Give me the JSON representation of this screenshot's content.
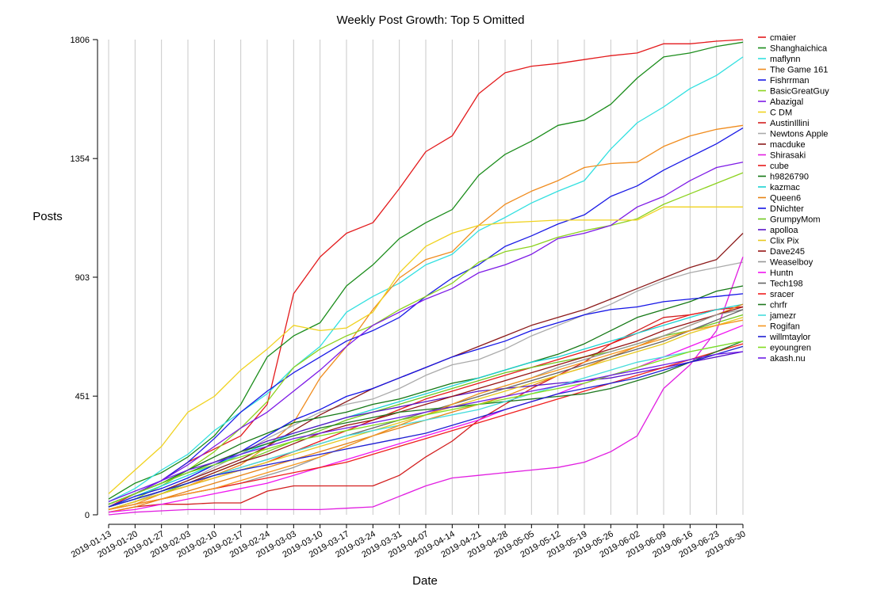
{
  "chart_data": {
    "type": "line",
    "title": "Weekly Post Growth: Top 5 Omitted",
    "xlabel": "Date",
    "ylabel": "Posts",
    "x": [
      "2019-01-13",
      "2019-01-20",
      "2019-01-27",
      "2019-02-03",
      "2019-02-10",
      "2019-02-17",
      "2019-02-24",
      "2019-03-03",
      "2019-03-10",
      "2019-03-17",
      "2019-03-24",
      "2019-03-31",
      "2019-04-07",
      "2019-04-14",
      "2019-04-21",
      "2019-04-28",
      "2019-05-05",
      "2019-05-12",
      "2019-05-19",
      "2019-05-26",
      "2019-06-02",
      "2019-06-09",
      "2019-06-16",
      "2019-06-23",
      "2019-06-30"
    ],
    "yticks": [
      0,
      451,
      903,
      1354,
      1806
    ],
    "ylim": [
      0,
      1806
    ],
    "grid": "vertical",
    "legend_position": "right",
    "series": [
      {
        "name": "cmaier",
        "color": "#e31a1c",
        "values": [
          30,
          80,
          130,
          200,
          250,
          300,
          420,
          840,
          980,
          1070,
          1110,
          1240,
          1380,
          1440,
          1600,
          1680,
          1705,
          1715,
          1730,
          1745,
          1755,
          1790,
          1790,
          1800,
          1806
        ]
      },
      {
        "name": "Shanghaichica",
        "color": "#1a8c1a",
        "values": [
          60,
          120,
          160,
          220,
          300,
          420,
          600,
          680,
          730,
          870,
          950,
          1050,
          1110,
          1160,
          1290,
          1370,
          1420,
          1480,
          1500,
          1560,
          1660,
          1740,
          1755,
          1780,
          1796
        ]
      },
      {
        "name": "maflynn",
        "color": "#33e0e0",
        "values": [
          50,
          100,
          170,
          230,
          320,
          390,
          460,
          560,
          640,
          770,
          830,
          880,
          950,
          990,
          1080,
          1130,
          1185,
          1230,
          1270,
          1390,
          1490,
          1550,
          1620,
          1670,
          1740
        ]
      },
      {
        "name": "The Game 161",
        "color": "#f08c1e",
        "values": [
          20,
          40,
          80,
          110,
          150,
          190,
          260,
          350,
          520,
          640,
          780,
          900,
          970,
          1000,
          1100,
          1180,
          1230,
          1270,
          1320,
          1335,
          1340,
          1400,
          1440,
          1465,
          1480
        ]
      },
      {
        "name": "Fishrrman",
        "color": "#1a1ae6",
        "values": [
          40,
          80,
          130,
          200,
          290,
          390,
          470,
          540,
          600,
          660,
          700,
          750,
          830,
          900,
          950,
          1020,
          1060,
          1105,
          1140,
          1210,
          1250,
          1310,
          1360,
          1410,
          1470
        ]
      },
      {
        "name": "BasicGreatGuy",
        "color": "#8cd21e",
        "values": [
          30,
          60,
          110,
          170,
          240,
          330,
          430,
          560,
          630,
          680,
          720,
          780,
          830,
          880,
          960,
          1000,
          1020,
          1055,
          1080,
          1100,
          1125,
          1180,
          1220,
          1260,
          1300
        ]
      },
      {
        "name": "Abazigal",
        "color": "#7d1ae6",
        "values": [
          40,
          80,
          130,
          190,
          260,
          330,
          390,
          470,
          550,
          640,
          720,
          770,
          820,
          860,
          920,
          950,
          990,
          1050,
          1070,
          1100,
          1170,
          1210,
          1270,
          1320,
          1340
        ]
      },
      {
        "name": "C DM",
        "color": "#f0d21e",
        "values": [
          80,
          170,
          260,
          390,
          450,
          550,
          630,
          720,
          700,
          710,
          770,
          920,
          1020,
          1070,
          1100,
          1110,
          1115,
          1120,
          1120,
          1120,
          1120,
          1170,
          1170,
          1170,
          1170
        ]
      },
      {
        "name": "AustinIllini",
        "color": "#d21e1e",
        "values": [
          10,
          30,
          40,
          40,
          45,
          45,
          90,
          110,
          110,
          110,
          110,
          150,
          220,
          280,
          360,
          420,
          480,
          530,
          580,
          650,
          700,
          750,
          760,
          780,
          790
        ]
      },
      {
        "name": "Newtons Apple",
        "color": "#aaaaaa",
        "values": [
          20,
          50,
          90,
          130,
          180,
          230,
          290,
          340,
          390,
          420,
          440,
          480,
          530,
          570,
          590,
          630,
          680,
          720,
          760,
          800,
          850,
          890,
          920,
          940,
          960
        ]
      },
      {
        "name": "macduke",
        "color": "#8c1a1a",
        "values": [
          30,
          60,
          90,
          130,
          170,
          210,
          260,
          320,
          380,
          430,
          480,
          520,
          560,
          600,
          640,
          680,
          720,
          750,
          780,
          820,
          860,
          900,
          940,
          970,
          1070
        ]
      },
      {
        "name": "Shirasaki",
        "color": "#e11ee1",
        "values": [
          0,
          10,
          15,
          20,
          20,
          20,
          20,
          20,
          20,
          25,
          30,
          70,
          110,
          140,
          150,
          160,
          170,
          180,
          200,
          240,
          300,
          480,
          570,
          700,
          980
        ]
      },
      {
        "name": "cube",
        "color": "#e61a1a",
        "values": [
          20,
          50,
          80,
          110,
          140,
          170,
          200,
          240,
          280,
          320,
          360,
          400,
          440,
          470,
          500,
          530,
          560,
          590,
          620,
          650,
          690,
          730,
          760,
          780,
          790
        ]
      },
      {
        "name": "h9826790",
        "color": "#147814",
        "values": [
          40,
          80,
          120,
          170,
          220,
          270,
          310,
          350,
          370,
          390,
          420,
          440,
          470,
          500,
          520,
          550,
          580,
          610,
          650,
          700,
          750,
          780,
          810,
          850,
          870
        ]
      },
      {
        "name": "kazmac",
        "color": "#1ad2d2",
        "values": [
          30,
          70,
          110,
          150,
          190,
          230,
          270,
          310,
          340,
          370,
          400,
          430,
          460,
          490,
          520,
          550,
          580,
          600,
          630,
          660,
          690,
          720,
          750,
          780,
          800
        ]
      },
      {
        "name": "Queen6",
        "color": "#e68214",
        "values": [
          10,
          30,
          60,
          90,
          120,
          150,
          180,
          210,
          240,
          270,
          300,
          330,
          360,
          390,
          420,
          450,
          490,
          530,
          560,
          600,
          640,
          680,
          720,
          760,
          800
        ]
      },
      {
        "name": "DNichter",
        "color": "#1414e6",
        "values": [
          30,
          70,
          100,
          140,
          190,
          240,
          300,
          360,
          400,
          450,
          480,
          520,
          560,
          600,
          630,
          660,
          700,
          730,
          760,
          780,
          790,
          810,
          820,
          830,
          840
        ]
      },
      {
        "name": "GrumpyMom",
        "color": "#6ec81e",
        "values": [
          20,
          50,
          80,
          120,
          160,
          200,
          240,
          280,
          320,
          360,
          390,
          420,
          450,
          480,
          510,
          540,
          560,
          580,
          600,
          620,
          650,
          680,
          700,
          730,
          760
        ]
      },
      {
        "name": "apolloa",
        "color": "#5a14c8",
        "values": [
          40,
          80,
          120,
          160,
          200,
          240,
          280,
          310,
          340,
          370,
          390,
          410,
          430,
          450,
          470,
          480,
          490,
          500,
          510,
          520,
          540,
          560,
          580,
          600,
          620
        ]
      },
      {
        "name": "Clix Pix",
        "color": "#e6c81e",
        "values": [
          20,
          50,
          80,
          110,
          140,
          170,
          200,
          230,
          260,
          290,
          320,
          350,
          380,
          410,
          440,
          470,
          500,
          530,
          560,
          590,
          620,
          650,
          690,
          720,
          750
        ]
      },
      {
        "name": "Dave245",
        "color": "#961414",
        "values": [
          30,
          60,
          90,
          120,
          160,
          200,
          230,
          270,
          310,
          340,
          360,
          390,
          420,
          450,
          480,
          510,
          540,
          570,
          600,
          630,
          660,
          700,
          730,
          760,
          790
        ]
      },
      {
        "name": "Weaselboy",
        "color": "#969696",
        "values": [
          20,
          40,
          60,
          80,
          100,
          120,
          150,
          180,
          220,
          260,
          300,
          340,
          380,
          420,
          460,
          490,
          520,
          560,
          590,
          620,
          650,
          680,
          720,
          760,
          780
        ]
      },
      {
        "name": "Huntn",
        "color": "#f014f0",
        "values": [
          10,
          20,
          40,
          60,
          80,
          100,
          120,
          150,
          180,
          210,
          240,
          270,
          300,
          330,
          360,
          400,
          430,
          460,
          500,
          530,
          560,
          600,
          640,
          680,
          720
        ]
      },
      {
        "name": "Tech198",
        "color": "#646464",
        "values": [
          30,
          60,
          90,
          120,
          150,
          180,
          210,
          240,
          270,
          300,
          330,
          360,
          390,
          420,
          450,
          480,
          510,
          540,
          570,
          600,
          630,
          660,
          700,
          740,
          780
        ]
      },
      {
        "name": "sracer",
        "color": "#f01e1e",
        "values": [
          20,
          40,
          60,
          80,
          100,
          120,
          140,
          160,
          180,
          200,
          230,
          260,
          290,
          320,
          350,
          380,
          410,
          440,
          470,
          500,
          530,
          560,
          590,
          620,
          650
        ]
      },
      {
        "name": "chrfr",
        "color": "#1e781e",
        "values": [
          40,
          80,
          120,
          160,
          200,
          240,
          270,
          300,
          330,
          350,
          370,
          390,
          400,
          410,
          420,
          430,
          440,
          450,
          460,
          480,
          510,
          540,
          580,
          620,
          660
        ]
      },
      {
        "name": "jamezr",
        "color": "#46dcdc",
        "values": [
          30,
          60,
          90,
          120,
          150,
          180,
          210,
          240,
          270,
          300,
          320,
          340,
          360,
          380,
          400,
          430,
          460,
          490,
          520,
          550,
          580,
          600,
          620,
          640,
          660
        ]
      },
      {
        "name": "Rogifan",
        "color": "#f5961e",
        "values": [
          20,
          40,
          60,
          80,
          100,
          130,
          160,
          190,
          220,
          260,
          300,
          340,
          380,
          420,
          460,
          490,
          520,
          550,
          580,
          610,
          640,
          670,
          700,
          720,
          740
        ]
      },
      {
        "name": "willmtaylor",
        "color": "#1e1ed2",
        "values": [
          30,
          60,
          90,
          120,
          150,
          170,
          190,
          210,
          230,
          250,
          270,
          290,
          310,
          340,
          370,
          400,
          430,
          460,
          480,
          500,
          520,
          550,
          580,
          610,
          640
        ]
      },
      {
        "name": "eyoungren",
        "color": "#82dc1e",
        "values": [
          40,
          80,
          120,
          160,
          190,
          220,
          250,
          280,
          300,
          320,
          340,
          360,
          380,
          400,
          420,
          440,
          460,
          480,
          500,
          530,
          560,
          590,
          620,
          640,
          660
        ]
      },
      {
        "name": "akash.nu",
        "color": "#6e1ee6",
        "values": [
          50,
          90,
          130,
          170,
          200,
          230,
          260,
          290,
          310,
          330,
          350,
          370,
          390,
          410,
          430,
          450,
          470,
          490,
          510,
          530,
          550,
          570,
          590,
          610,
          620
        ]
      }
    ]
  }
}
